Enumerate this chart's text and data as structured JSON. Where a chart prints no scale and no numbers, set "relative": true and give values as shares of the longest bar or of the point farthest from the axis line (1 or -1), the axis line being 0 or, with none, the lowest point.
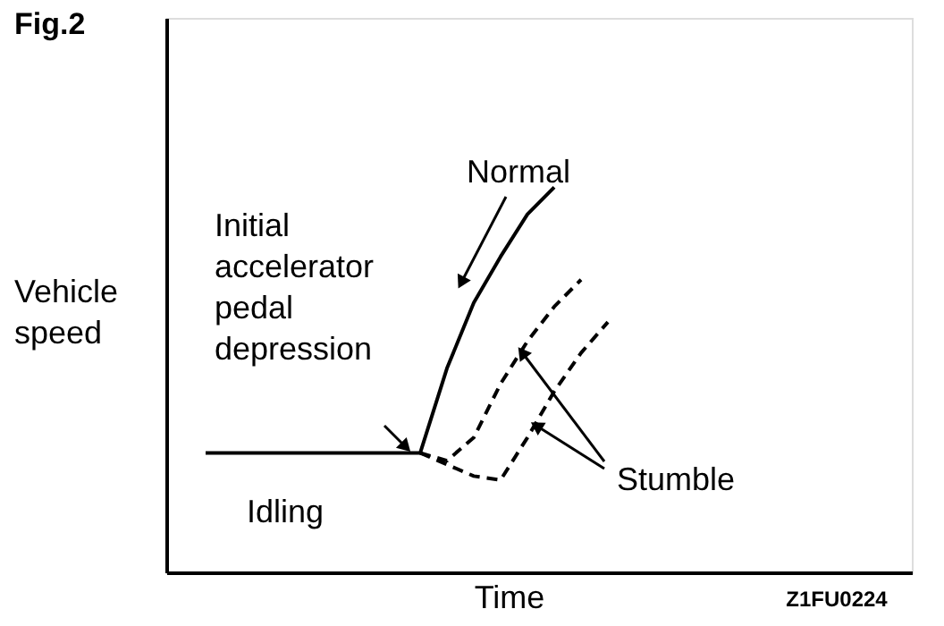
{
  "chart_data": {
    "type": "line",
    "title": "Fig.2",
    "xlabel": "Time",
    "ylabel": "Vehicle speed",
    "relative": true,
    "legend": false,
    "grid": false,
    "marker": "none",
    "categories": [
      null,
      null,
      null,
      null,
      null,
      null,
      null,
      null,
      null,
      null,
      null,
      null,
      null,
      null,
      null,
      null
    ],
    "series": [
      {
        "name": "Normal",
        "color": "#000000",
        "line_style": "solid",
        "values": [
          0.31,
          0.31,
          0.31,
          0.31,
          0.31,
          0.31,
          0.31,
          0.31,
          0.31,
          0.53,
          0.7,
          0.82,
          0.93,
          1.0,
          null,
          null
        ]
      },
      {
        "name": "Stumble",
        "color": "#000000",
        "line_style": "dashed",
        "values": [
          null,
          null,
          null,
          null,
          null,
          null,
          null,
          null,
          0.31,
          0.29,
          0.35,
          0.49,
          0.6,
          0.69,
          0.76,
          null
        ]
      },
      {
        "color": "#000000",
        "line_style": "dashed",
        "values": [
          null,
          null,
          null,
          null,
          null,
          null,
          null,
          null,
          0.31,
          0.28,
          0.25,
          0.24,
          0.35,
          0.47,
          0.57,
          0.65
        ]
      }
    ],
    "annotations": [
      "Initial accelerator pedal depression",
      "Z1FU0224",
      "Idling"
    ]
  }
}
